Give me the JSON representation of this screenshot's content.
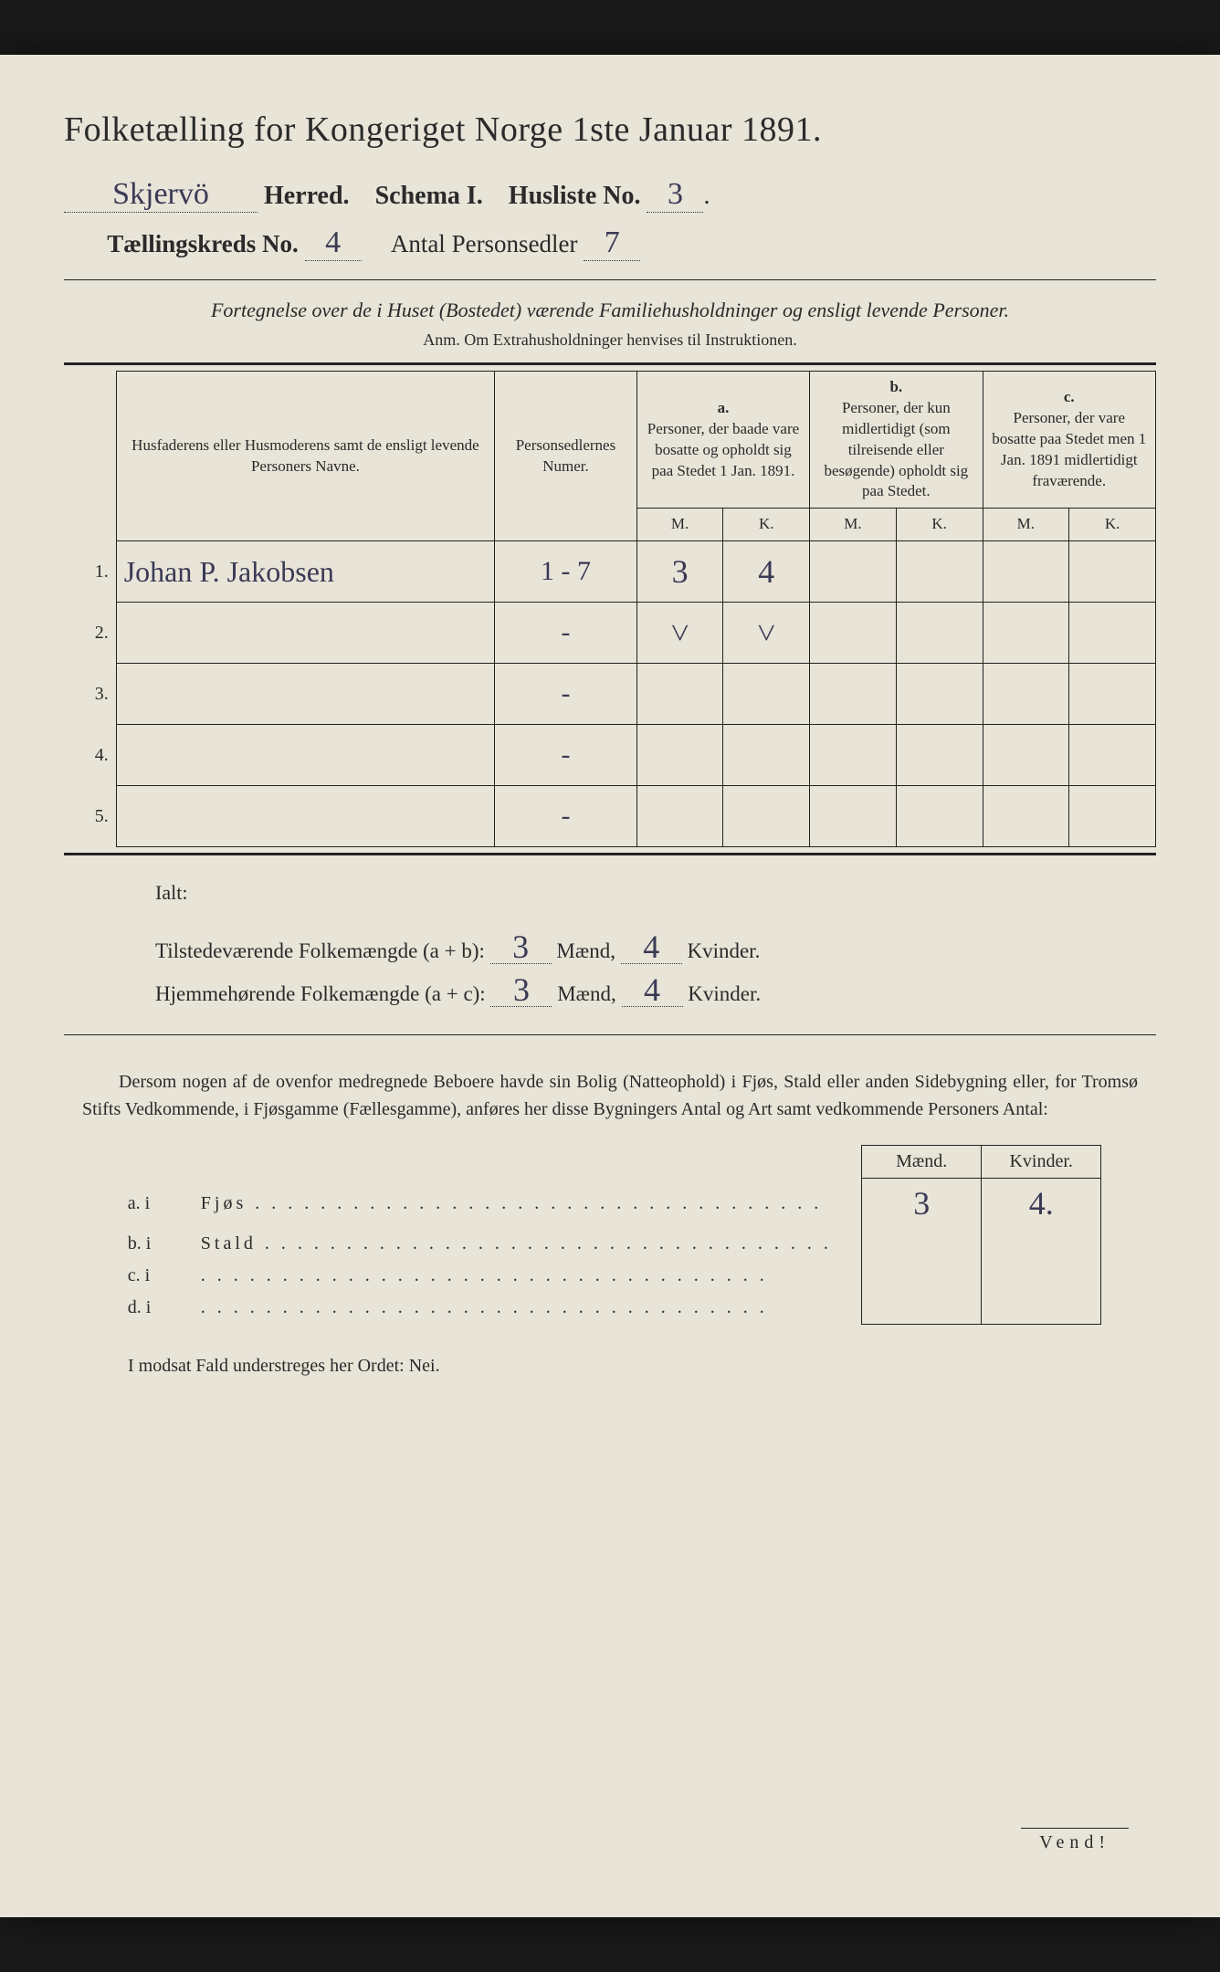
{
  "title": "Folketælling for Kongeriget Norge 1ste Januar 1891.",
  "header": {
    "herred_value": "Skjervö",
    "herred_label": "Herred.",
    "schema": "Schema I.",
    "husliste_label": "Husliste No.",
    "husliste_no": "3",
    "kreds_label": "Tællingskreds No.",
    "kreds_no": "4",
    "personsedler_label": "Antal Personsedler",
    "personsedler_no": "7"
  },
  "subtitle": "Fortegnelse over de i Huset (Bostedet) værende Familiehusholdninger og ensligt levende Personer.",
  "anm": "Anm.  Om Extrahusholdninger henvises til Instruktionen.",
  "columns": {
    "names": "Husfaderens eller Husmoderens samt de ensligt levende Personers Navne.",
    "numer": "Personsedlernes Numer.",
    "a_label": "a.",
    "a_text": "Personer, der baade vare bosatte og opholdt sig paa Stedet 1 Jan. 1891.",
    "b_label": "b.",
    "b_text": "Personer, der kun midlertidigt (som tilreisende eller besøgende) opholdt sig paa Stedet.",
    "c_label": "c.",
    "c_text": "Personer, der vare bosatte paa Stedet men 1 Jan. 1891 midlertidigt fraværende.",
    "M": "M.",
    "K": "K."
  },
  "rows": [
    {
      "n": "1.",
      "name": "Johan P. Jakobsen",
      "numer": "1 - 7",
      "aM": "3",
      "aK": "4",
      "bM": "",
      "bK": "",
      "cM": "",
      "cK": ""
    },
    {
      "n": "2.",
      "name": "",
      "numer": "-",
      "aM": "˅",
      "aK": "˅",
      "bM": "",
      "bK": "",
      "cM": "",
      "cK": ""
    },
    {
      "n": "3.",
      "name": "",
      "numer": "-",
      "aM": "",
      "aK": "",
      "bM": "",
      "bK": "",
      "cM": "",
      "cK": ""
    },
    {
      "n": "4.",
      "name": "",
      "numer": "-",
      "aM": "",
      "aK": "",
      "bM": "",
      "bK": "",
      "cM": "",
      "cK": ""
    },
    {
      "n": "5.",
      "name": "",
      "numer": "-",
      "aM": "",
      "aK": "",
      "bM": "",
      "bK": "",
      "cM": "",
      "cK": ""
    }
  ],
  "tally": {
    "ialt": "Ialt:",
    "line1_label": "Tilstedeværende Folkemængde (a + b):",
    "line1_m": "3",
    "line1_k": "4",
    "line2_label": "Hjemmehørende Folkemængde (a + c):",
    "line2_m": "3",
    "line2_k": "4",
    "maend": "Mænd,",
    "kvinder": "Kvinder."
  },
  "paragraph": "Dersom nogen af de ovenfor medregnede Beboere havde sin Bolig (Natteophold) i Fjøs, Stald eller anden Sidebygning eller, for Tromsø Stifts Vedkommende, i Fjøsgamme (Fællesgamme), anføres her disse Bygningers Antal og Art samt vedkommende Personers Antal:",
  "buildings": {
    "header_m": "Mænd.",
    "header_k": "Kvinder.",
    "rows": [
      {
        "key": "a.  i",
        "label": "Fjøs",
        "m": "3",
        "k": "4."
      },
      {
        "key": "b.  i",
        "label": "Stald",
        "m": "",
        "k": ""
      },
      {
        "key": "c.  i",
        "label": "",
        "m": "",
        "k": ""
      },
      {
        "key": "d.  i",
        "label": "",
        "m": "",
        "k": ""
      }
    ]
  },
  "modsat": "I modsat Fald understreges her Ordet: Nei.",
  "vend": "Vend!",
  "italic_words": {
    "fjos": "Fjøs, Stald eller anden Sidebygning",
    "fjosgamme": "Fjøsgamme"
  }
}
